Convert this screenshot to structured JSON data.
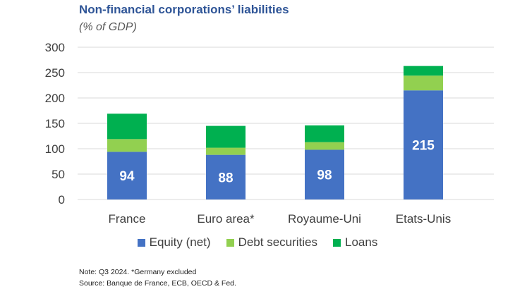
{
  "chart_data": {
    "type": "bar",
    "stacked": true,
    "title": "Non-financial corporations’ liabilities",
    "subtitle": "(% of GDP)",
    "categories": [
      "France",
      "Euro area*",
      "Royaume-Uni",
      "Etats-Unis"
    ],
    "series": [
      {
        "name": "Equity (net)",
        "color": "#4472c4",
        "values": [
          94,
          88,
          98,
          215
        ],
        "labels": [
          "94",
          "88",
          "98",
          "215"
        ]
      },
      {
        "name": "Debt securities",
        "color": "#92d050",
        "values": [
          25,
          14,
          15,
          29
        ]
      },
      {
        "name": "Loans",
        "color": "#00b050",
        "values": [
          50,
          43,
          33,
          19
        ]
      }
    ],
    "ylim": [
      0,
      300
    ],
    "yticks": [
      "0",
      "50",
      "100",
      "150",
      "200",
      "250",
      "300"
    ],
    "grid": true,
    "legend": "bottom"
  },
  "notes": [
    "Note: Q3 2024. *Germany excluded",
    "Source: Banque de France, ECB, OECD & Fed."
  ]
}
